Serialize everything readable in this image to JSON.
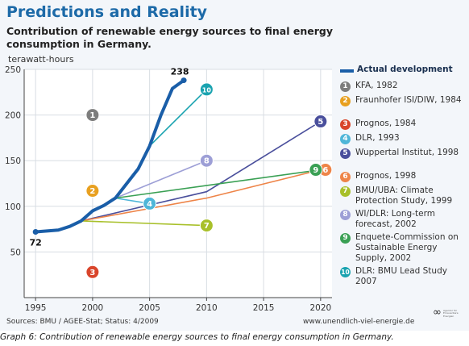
{
  "title": "Predictions and Reality",
  "subtitle": "Contribution of renewable energy sources to final energy consumption in Germany.",
  "unit_label": "terawatt-hours",
  "source": "Sources: BMU / AGEE-Stat; Status: 4/2009",
  "website": "www.unendlich-viel-energie.de",
  "logo": {
    "mark": "∞",
    "text": "Agentur für Erneuerbare Energien"
  },
  "caption": "Graph 6: Contribution of renewable energy sources to final energy consumption in Germany.",
  "colors": {
    "actual": "#1a5ea8",
    "grid": "#d8dde3",
    "axis": "#444444",
    "plot_bg": "#ffffff",
    "frame_bg": "#f3f6fa"
  },
  "chart_data": {
    "type": "line",
    "ylabel": "terawatt-hours",
    "xlim": [
      1994,
      2021
    ],
    "ylim": [
      0,
      250
    ],
    "x_ticks": [
      1995,
      2000,
      2005,
      2010,
      2015,
      2020
    ],
    "y_ticks": [
      50,
      100,
      150,
      200,
      250
    ],
    "grid": true,
    "legend_position": "right",
    "actual": {
      "name": "Actual development",
      "x": [
        1995,
        1996,
        1997,
        1998,
        1999,
        2000,
        2001,
        2002,
        2003,
        2004,
        2005,
        2006,
        2007,
        2008
      ],
      "y": [
        72,
        73,
        74,
        78,
        84,
        95,
        101,
        109,
        125,
        141,
        166,
        200,
        229,
        238
      ],
      "start_label": "72",
      "end_label": "238"
    },
    "predictions": [
      {
        "num": "1",
        "name": "KFA, 1982",
        "color": "#7d7d7d",
        "x": [
          2000
        ],
        "y": [
          200
        ]
      },
      {
        "num": "2",
        "name": "Fraunhofer ISI/DIW, 1984",
        "color": "#e8a020",
        "x": [
          2000
        ],
        "y": [
          117
        ]
      },
      {
        "num": "3",
        "name": "Prognos, 1984",
        "color": "#d9452b",
        "x": [
          2000
        ],
        "y": [
          28
        ]
      },
      {
        "num": "4",
        "name": "DLR, 1993",
        "color": "#4fb6d8",
        "x": [
          2002,
          2005
        ],
        "y": [
          109,
          103
        ]
      },
      {
        "num": "5",
        "name": "Wuppertal Institut, 1998",
        "color": "#4a4f9c",
        "x": [
          1999,
          2010,
          2020
        ],
        "y": [
          84,
          116,
          193
        ]
      },
      {
        "num": "6",
        "name": "Prognos, 1998",
        "color": "#ee8448",
        "x": [
          1999,
          2010,
          2020
        ],
        "y": [
          84,
          109,
          140
        ]
      },
      {
        "num": "7",
        "name": "BMU/UBA: Climate Protection Study, 1999",
        "color": "#a8c02a",
        "x": [
          1999,
          2010
        ],
        "y": [
          84,
          79
        ]
      },
      {
        "num": "8",
        "name": "WI/DLR: Long-term forecast, 2002",
        "color": "#9d9fd6",
        "x": [
          2002,
          2010
        ],
        "y": [
          109,
          150
        ]
      },
      {
        "num": "9",
        "name": "Enquete-Commission on Sustainable Energy Supply, 2002",
        "color": "#3aa054",
        "x": [
          2002,
          2020
        ],
        "y": [
          109,
          140
        ]
      },
      {
        "num": "10",
        "name": "DLR: BMU Lead Study 2007",
        "color": "#1aa3b0",
        "x": [
          2005,
          2010
        ],
        "y": [
          166,
          228
        ]
      }
    ]
  }
}
